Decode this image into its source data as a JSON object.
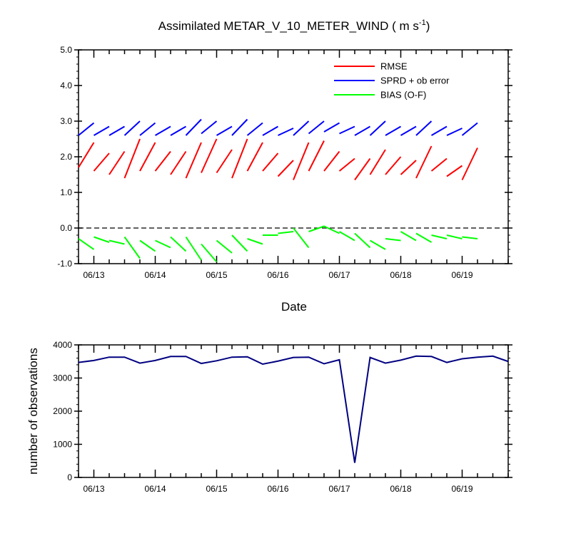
{
  "chart_data": [
    {
      "type": "line",
      "title": "Assimilated METAR_V_10_METER_WIND ( m s",
      "title_units_suffix": ")",
      "title_superscript": "-1",
      "xlabel": "Date",
      "ylabel": "",
      "ylim": [
        -1.0,
        5.0
      ],
      "yticks": [
        "-1.0",
        "0.0",
        "1.0",
        "2.0",
        "3.0",
        "4.0",
        "5.0"
      ],
      "xticks": [
        "06/13",
        "06/14",
        "06/15",
        "06/16",
        "06/17",
        "06/18",
        "06/19"
      ],
      "xticks_pos": [
        1,
        5,
        9,
        13,
        17,
        21,
        25
      ],
      "xlim": [
        0,
        28
      ],
      "zero_line": "dashed",
      "legend": [
        "RMSE",
        "SPRD + ob error",
        "BIAS (O-F)"
      ],
      "legend_position": "top-right",
      "series": [
        {
          "name": "RMSE",
          "color": "#ff0000",
          "segments": [
            [
              [
                0.0,
                1.7
              ],
              [
                1.0,
                2.4
              ]
            ],
            [
              [
                1.0,
                1.6
              ],
              [
                2.0,
                2.1
              ]
            ],
            [
              [
                2.0,
                1.5
              ],
              [
                3.0,
                2.15
              ]
            ],
            [
              [
                3.0,
                1.4
              ],
              [
                4.0,
                2.5
              ]
            ],
            [
              [
                4.0,
                1.6
              ],
              [
                5.0,
                2.4
              ]
            ],
            [
              [
                5.0,
                1.6
              ],
              [
                6.0,
                2.15
              ]
            ],
            [
              [
                6.0,
                1.5
              ],
              [
                7.0,
                2.15
              ]
            ],
            [
              [
                7.0,
                1.4
              ],
              [
                8.0,
                2.4
              ]
            ],
            [
              [
                8.0,
                1.55
              ],
              [
                9.0,
                2.5
              ]
            ],
            [
              [
                9.0,
                1.55
              ],
              [
                10.0,
                2.2
              ]
            ],
            [
              [
                10.0,
                1.4
              ],
              [
                11.0,
                2.5
              ]
            ],
            [
              [
                11.0,
                1.6
              ],
              [
                12.0,
                2.4
              ]
            ],
            [
              [
                12.0,
                1.6
              ],
              [
                13.0,
                2.1
              ]
            ],
            [
              [
                13.0,
                1.45
              ],
              [
                14.0,
                1.9
              ]
            ],
            [
              [
                14.0,
                1.35
              ],
              [
                15.0,
                2.4
              ]
            ],
            [
              [
                15.0,
                1.6
              ],
              [
                16.0,
                2.45
              ]
            ],
            [
              [
                16.0,
                1.6
              ],
              [
                17.0,
                2.15
              ]
            ],
            [
              [
                17.0,
                1.6
              ],
              [
                18.0,
                1.95
              ]
            ],
            [
              [
                18.0,
                1.35
              ],
              [
                19.0,
                1.95
              ]
            ],
            [
              [
                19.0,
                1.5
              ],
              [
                20.0,
                2.2
              ]
            ],
            [
              [
                20.0,
                1.5
              ],
              [
                21.0,
                2.0
              ]
            ],
            [
              [
                21.0,
                1.5
              ],
              [
                22.0,
                1.9
              ]
            ],
            [
              [
                22.0,
                1.4
              ],
              [
                23.0,
                2.3
              ]
            ],
            [
              [
                23.0,
                1.6
              ],
              [
                24.0,
                1.95
              ]
            ],
            [
              [
                24.0,
                1.45
              ],
              [
                25.0,
                1.75
              ]
            ],
            [
              [
                25.0,
                1.35
              ],
              [
                26.0,
                2.25
              ]
            ]
          ]
        },
        {
          "name": "SPRD + ob error",
          "color": "#0000ff",
          "segments": [
            [
              [
                0.0,
                2.6
              ],
              [
                1.0,
                2.95
              ]
            ],
            [
              [
                1.0,
                2.6
              ],
              [
                2.0,
                2.85
              ]
            ],
            [
              [
                2.0,
                2.6
              ],
              [
                3.0,
                2.85
              ]
            ],
            [
              [
                3.0,
                2.6
              ],
              [
                4.0,
                3.0
              ]
            ],
            [
              [
                4.0,
                2.6
              ],
              [
                5.0,
                2.95
              ]
            ],
            [
              [
                5.0,
                2.6
              ],
              [
                6.0,
                2.85
              ]
            ],
            [
              [
                6.0,
                2.6
              ],
              [
                7.0,
                2.85
              ]
            ],
            [
              [
                7.0,
                2.6
              ],
              [
                8.0,
                3.05
              ]
            ],
            [
              [
                8.0,
                2.65
              ],
              [
                9.0,
                3.0
              ]
            ],
            [
              [
                9.0,
                2.6
              ],
              [
                10.0,
                2.85
              ]
            ],
            [
              [
                10.0,
                2.6
              ],
              [
                11.0,
                3.05
              ]
            ],
            [
              [
                11.0,
                2.6
              ],
              [
                12.0,
                2.95
              ]
            ],
            [
              [
                12.0,
                2.6
              ],
              [
                13.0,
                2.85
              ]
            ],
            [
              [
                13.0,
                2.6
              ],
              [
                14.0,
                2.8
              ]
            ],
            [
              [
                14.0,
                2.6
              ],
              [
                15.0,
                3.0
              ]
            ],
            [
              [
                15.0,
                2.65
              ],
              [
                16.0,
                3.0
              ]
            ],
            [
              [
                16.0,
                2.7
              ],
              [
                17.0,
                2.95
              ]
            ],
            [
              [
                17.0,
                2.65
              ],
              [
                18.0,
                2.85
              ]
            ],
            [
              [
                18.0,
                2.6
              ],
              [
                19.0,
                2.85
              ]
            ],
            [
              [
                19.0,
                2.6
              ],
              [
                20.0,
                3.0
              ]
            ],
            [
              [
                20.0,
                2.6
              ],
              [
                21.0,
                2.85
              ]
            ],
            [
              [
                21.0,
                2.6
              ],
              [
                22.0,
                2.85
              ]
            ],
            [
              [
                22.0,
                2.6
              ],
              [
                23.0,
                3.0
              ]
            ],
            [
              [
                23.0,
                2.6
              ],
              [
                24.0,
                2.85
              ]
            ],
            [
              [
                24.0,
                2.6
              ],
              [
                25.0,
                2.8
              ]
            ],
            [
              [
                25.0,
                2.6
              ],
              [
                26.0,
                2.95
              ]
            ]
          ]
        },
        {
          "name": "BIAS (O-F)",
          "color": "#00ff00",
          "segments": [
            [
              [
                0.0,
                -0.3
              ],
              [
                1.0,
                -0.6
              ]
            ],
            [
              [
                1.0,
                -0.25
              ],
              [
                2.0,
                -0.4
              ]
            ],
            [
              [
                2.0,
                -0.35
              ],
              [
                3.0,
                -0.45
              ]
            ],
            [
              [
                3.0,
                -0.25
              ],
              [
                4.0,
                -0.85
              ]
            ],
            [
              [
                4.0,
                -0.35
              ],
              [
                5.0,
                -0.65
              ]
            ],
            [
              [
                5.0,
                -0.35
              ],
              [
                6.0,
                -0.55
              ]
            ],
            [
              [
                6.0,
                -0.25
              ],
              [
                7.0,
                -0.65
              ]
            ],
            [
              [
                7.0,
                -0.25
              ],
              [
                8.0,
                -0.9
              ]
            ],
            [
              [
                8.0,
                -0.45
              ],
              [
                9.0,
                -0.95
              ]
            ],
            [
              [
                9.0,
                -0.35
              ],
              [
                10.0,
                -0.7
              ]
            ],
            [
              [
                10.0,
                -0.2
              ],
              [
                11.0,
                -0.65
              ]
            ],
            [
              [
                11.0,
                -0.3
              ],
              [
                12.0,
                -0.45
              ]
            ],
            [
              [
                12.0,
                -0.2
              ],
              [
                13.0,
                -0.2
              ]
            ],
            [
              [
                13.0,
                -0.15
              ],
              [
                14.0,
                -0.1
              ]
            ],
            [
              [
                14.0,
                0.0
              ],
              [
                15.0,
                -0.55
              ]
            ],
            [
              [
                15.0,
                -0.1
              ],
              [
                16.0,
                0.05
              ],
              [
                17.0,
                -0.15
              ]
            ],
            [
              [
                17.0,
                -0.1
              ],
              [
                18.0,
                -0.35
              ]
            ],
            [
              [
                18.0,
                -0.15
              ],
              [
                19.0,
                -0.55
              ]
            ],
            [
              [
                19.0,
                -0.35
              ],
              [
                20.0,
                -0.6
              ]
            ],
            [
              [
                20.0,
                -0.3
              ],
              [
                21.0,
                -0.35
              ]
            ],
            [
              [
                21.0,
                -0.1
              ],
              [
                22.0,
                -0.35
              ]
            ],
            [
              [
                22.0,
                -0.15
              ],
              [
                23.0,
                -0.4
              ]
            ],
            [
              [
                23.0,
                -0.2
              ],
              [
                24.0,
                -0.3
              ]
            ],
            [
              [
                24.0,
                -0.2
              ],
              [
                25.0,
                -0.3
              ]
            ],
            [
              [
                25.0,
                -0.25
              ],
              [
                26.0,
                -0.3
              ]
            ]
          ]
        }
      ]
    },
    {
      "type": "line",
      "title": "",
      "xlabel": "",
      "ylabel": "number of observations",
      "ylim": [
        0,
        4000
      ],
      "yticks": [
        "0",
        "1000",
        "2000",
        "3000",
        "4000"
      ],
      "xticks": [
        "06/13",
        "06/14",
        "06/15",
        "06/16",
        "06/17",
        "06/18",
        "06/19"
      ],
      "xticks_pos": [
        1,
        5,
        9,
        13,
        17,
        21,
        25
      ],
      "xlim": [
        0,
        28
      ],
      "series": [
        {
          "name": "observations",
          "color": "#000080",
          "x": [
            0,
            1,
            2,
            3,
            4,
            5,
            6,
            7,
            8,
            9,
            10,
            11,
            12,
            13,
            14,
            15,
            16,
            17,
            18,
            19,
            20,
            21,
            22,
            23,
            24,
            25,
            26,
            27,
            28
          ],
          "values": [
            3470,
            3530,
            3630,
            3630,
            3450,
            3530,
            3650,
            3650,
            3440,
            3520,
            3630,
            3640,
            3420,
            3510,
            3620,
            3630,
            3430,
            3550,
            440,
            3620,
            3450,
            3540,
            3660,
            3650,
            3470,
            3580,
            3630,
            3660,
            3500
          ]
        }
      ]
    }
  ]
}
